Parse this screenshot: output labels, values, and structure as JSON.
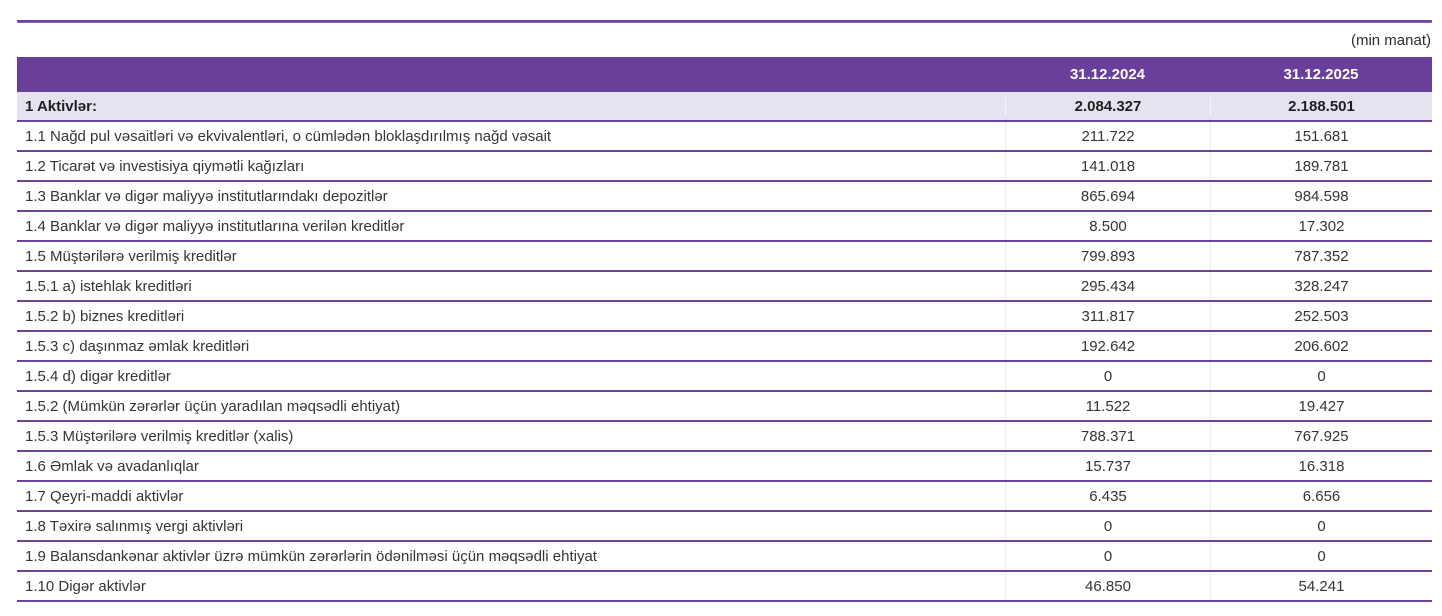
{
  "unit_note": "(min manat)",
  "colors": {
    "header_bg": "#6a3e9b",
    "total_row_bg": "#e7e2f0",
    "row_separator": "#6b4496",
    "header_text": "#ffffff",
    "body_text": "#353535"
  },
  "table": {
    "columns": [
      "31.12.2024",
      "31.12.2025"
    ],
    "total_row": {
      "label": "1 Aktivlər:",
      "v2024": "2.084.327",
      "v2025": "2.188.501"
    },
    "rows": [
      {
        "label": "1.1 Nağd pul vəsaitləri və ekvivalentləri, o cümlədən bloklaşdırılmış nağd vəsait",
        "v2024": "211.722",
        "v2025": "151.681"
      },
      {
        "label": "1.2 Ticarət və investisiya qiymətli kağızları",
        "v2024": "141.018",
        "v2025": "189.781"
      },
      {
        "label": "1.3 Banklar və digər maliyyə institutlarındakı depozitlər",
        "v2024": "865.694",
        "v2025": "984.598"
      },
      {
        "label": "1.4 Banklar və digər maliyyə institutlarına verilən kreditlər",
        "v2024": "8.500",
        "v2025": "17.302"
      },
      {
        "label": "1.5 Müştərilərə verilmiş kreditlər",
        "v2024": "799.893",
        "v2025": "787.352"
      },
      {
        "label": "1.5.1 a) istehlak kreditləri",
        "v2024": "295.434",
        "v2025": "328.247"
      },
      {
        "label": "1.5.2 b) biznes kreditləri",
        "v2024": "311.817",
        "v2025": "252.503"
      },
      {
        "label": "1.5.3 c) daşınmaz əmlak kreditləri",
        "v2024": "192.642",
        "v2025": "206.602"
      },
      {
        "label": "1.5.4 d) digər kreditlər",
        "v2024": "0",
        "v2025": "0"
      },
      {
        "label": "1.5.2 (Mümkün zərərlər üçün yaradılan məqsədli ehtiyat)",
        "v2024": "11.522",
        "v2025": "19.427"
      },
      {
        "label": "1.5.3 Müştərilərə verilmiş kreditlər (xalis)",
        "v2024": "788.371",
        "v2025": "767.925"
      },
      {
        "label": "1.6 Əmlak və avadanlıqlar",
        "v2024": "15.737",
        "v2025": "16.318"
      },
      {
        "label": "1.7 Qeyri-maddi aktivlər",
        "v2024": "6.435",
        "v2025": "6.656"
      },
      {
        "label": "1.8 Təxirə salınmış vergi aktivləri",
        "v2024": "0",
        "v2025": "0"
      },
      {
        "label": "1.9 Balansdankənar aktivlər üzrə mümkün zərərlərin ödənilməsi üçün məqsədli ehtiyat",
        "v2024": "0",
        "v2025": "0"
      },
      {
        "label": "1.10 Digər aktivlər",
        "v2024": "46.850",
        "v2025": "54.241"
      }
    ]
  }
}
